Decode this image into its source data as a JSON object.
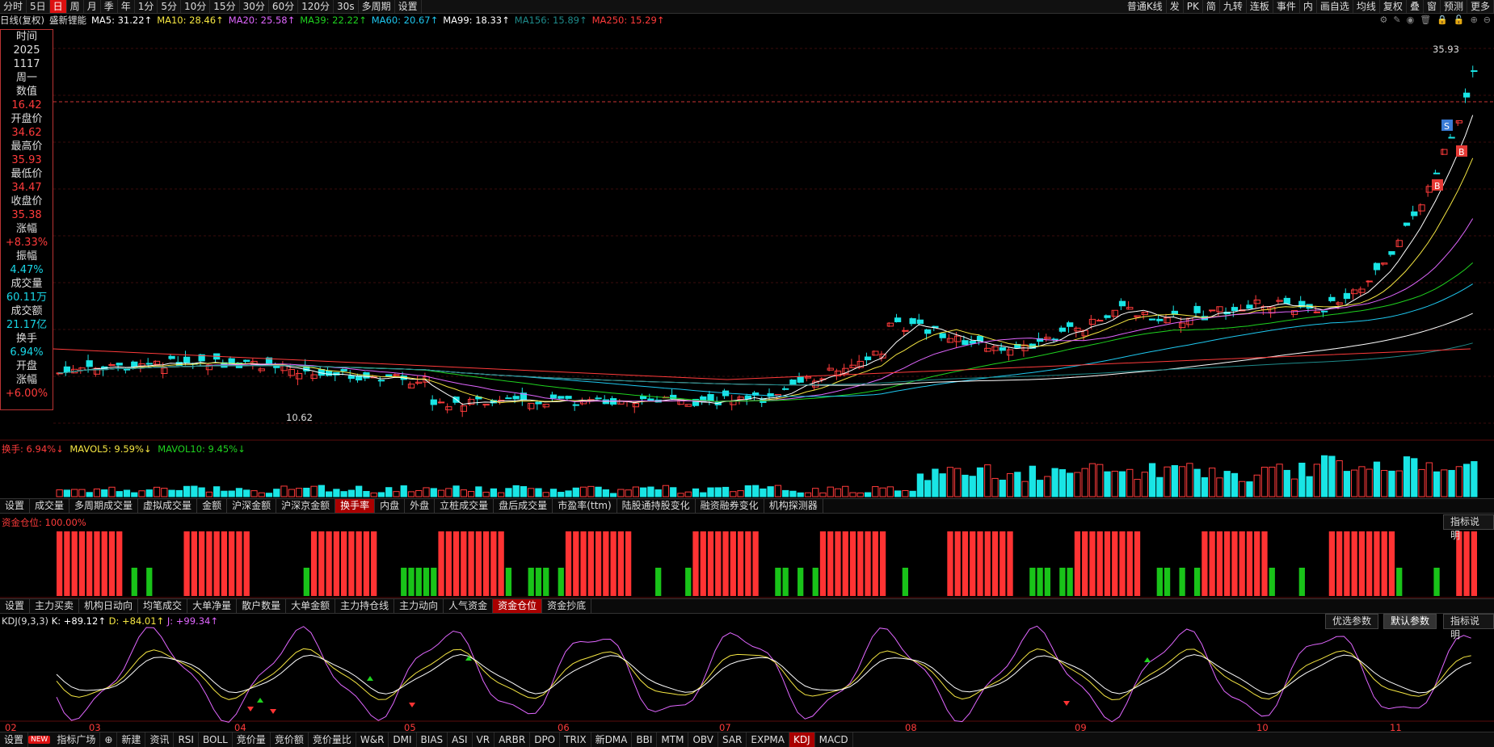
{
  "topbar": {
    "items": [
      "分时",
      "5日",
      "日",
      "周",
      "月",
      "季",
      "年",
      "1分",
      "5分",
      "10分",
      "15分",
      "30分",
      "60分",
      "120分",
      "30s",
      "多周期",
      "设置"
    ],
    "active": "日",
    "right_items": [
      "普通K线",
      "发",
      "PK",
      "简",
      "九转",
      "连板",
      "事件",
      "内",
      "画自选",
      "均线",
      "复权",
      "叠",
      "窗",
      "预测",
      "更多"
    ]
  },
  "infoline": {
    "prefix": "日线(复权)",
    "stock_name": "盛新锂能",
    "mas": [
      {
        "label": "MA5: 31.22↑",
        "color": "#ffffff"
      },
      {
        "label": "MA10: 28.46↑",
        "color": "#f5e642"
      },
      {
        "label": "MA20: 25.58↑",
        "color": "#e066ff"
      },
      {
        "label": "MA39: 22.22↑",
        "color": "#1fd21f"
      },
      {
        "label": "MA60: 20.67↑",
        "color": "#1ec8f0"
      },
      {
        "label": "MA99: 18.33↑",
        "color": "#ffffff"
      },
      {
        "label": "MA156: 15.89↑",
        "color": "#1e8a8a"
      },
      {
        "label": "MA250: 15.29↑",
        "color": "#ff3b3b"
      }
    ]
  },
  "sidepanel": [
    {
      "label": "时间",
      "value": "2025",
      "value2": "1117",
      "value3": "周一",
      "color": "label"
    },
    {
      "label": "数值",
      "value": "16.42",
      "color": "red"
    },
    {
      "label": "开盘价",
      "value": "34.62",
      "color": "red"
    },
    {
      "label": "最高价",
      "value": "35.93",
      "color": "red"
    },
    {
      "label": "最低价",
      "value": "34.47",
      "color": "red"
    },
    {
      "label": "收盘价",
      "value": "35.38",
      "color": "red"
    },
    {
      "label": "涨幅",
      "value": "+8.33%",
      "color": "red"
    },
    {
      "label": "振幅",
      "value": "4.47%",
      "color": "cyan"
    },
    {
      "label": "成交量",
      "value": "60.11万",
      "color": "cyan"
    },
    {
      "label": "成交额",
      "value": "21.17亿",
      "color": "cyan"
    },
    {
      "label": "换手",
      "value": "6.94%",
      "color": "cyan"
    },
    {
      "label": "开盘",
      "value": "",
      "color": "label"
    },
    {
      "label": "涨幅",
      "value": "+6.00%",
      "color": "red"
    }
  ],
  "price_annotations": {
    "high": "35.93",
    "low": "10.62",
    "buy": "B",
    "sell": "S"
  },
  "volume_panel": {
    "title": "换手: 6.94%↓",
    "mavol5": "MAVOL5: 9.59%↓",
    "mavol10": "MAVOL10: 9.45%↓"
  },
  "volume_tabs": [
    "设置",
    "成交量",
    "多周期成交量",
    "虚拟成交量",
    "金额",
    "沪深金额",
    "沪深京金额",
    "换手率",
    "内盘",
    "外盘",
    "立桩成交量",
    "盘后成交量",
    "市盈率(ttm)",
    "陆股通持股变化",
    "融资融券变化",
    "机构探测器"
  ],
  "volume_tab_active": "换手率",
  "fund_panel": {
    "title": "资金仓位: 100.00%",
    "help": "指标说明"
  },
  "fund_tabs": [
    "设置",
    "主力买卖",
    "机构日动向",
    "均笔成交",
    "大单净量",
    "散户数量",
    "大单金额",
    "主力持仓线",
    "主力动向",
    "人气资金",
    "资金仓位",
    "资金抄底"
  ],
  "fund_tab_active": "资金仓位",
  "kdj_panel": {
    "title": "KDJ(9,3,3)",
    "k": "K: +89.12↑",
    "d": "D: +84.01↑",
    "j": "J: +99.34↑",
    "buttons": [
      "优选参数",
      "默认参数",
      "指标说明"
    ]
  },
  "x_axis": [
    "02",
    "03",
    "04",
    "05",
    "06",
    "07",
    "08",
    "09",
    "10",
    "11"
  ],
  "bottombar": {
    "items": [
      "设置",
      "NEW",
      "指标广场",
      "⊕",
      "新建",
      "资讯",
      "RSI",
      "BOLL",
      "竞价量",
      "竞价额",
      "竞价量比",
      "W&R",
      "DMI",
      "BIAS",
      "ASI",
      "VR",
      "ARBR",
      "DPO",
      "TRIX",
      "新DMA",
      "BBI",
      "MTM",
      "OBV",
      "SAR",
      "EXPMA",
      "KDJ",
      "MACD"
    ],
    "active": "KDJ"
  },
  "colors": {
    "up": "#ff3b3b",
    "down": "#19e5e5",
    "bg": "#000000",
    "grid": "#3a0d0d",
    "kline_k": "#ffffff",
    "kline_d": "#f5e642",
    "kline_j": "#e066ff"
  }
}
